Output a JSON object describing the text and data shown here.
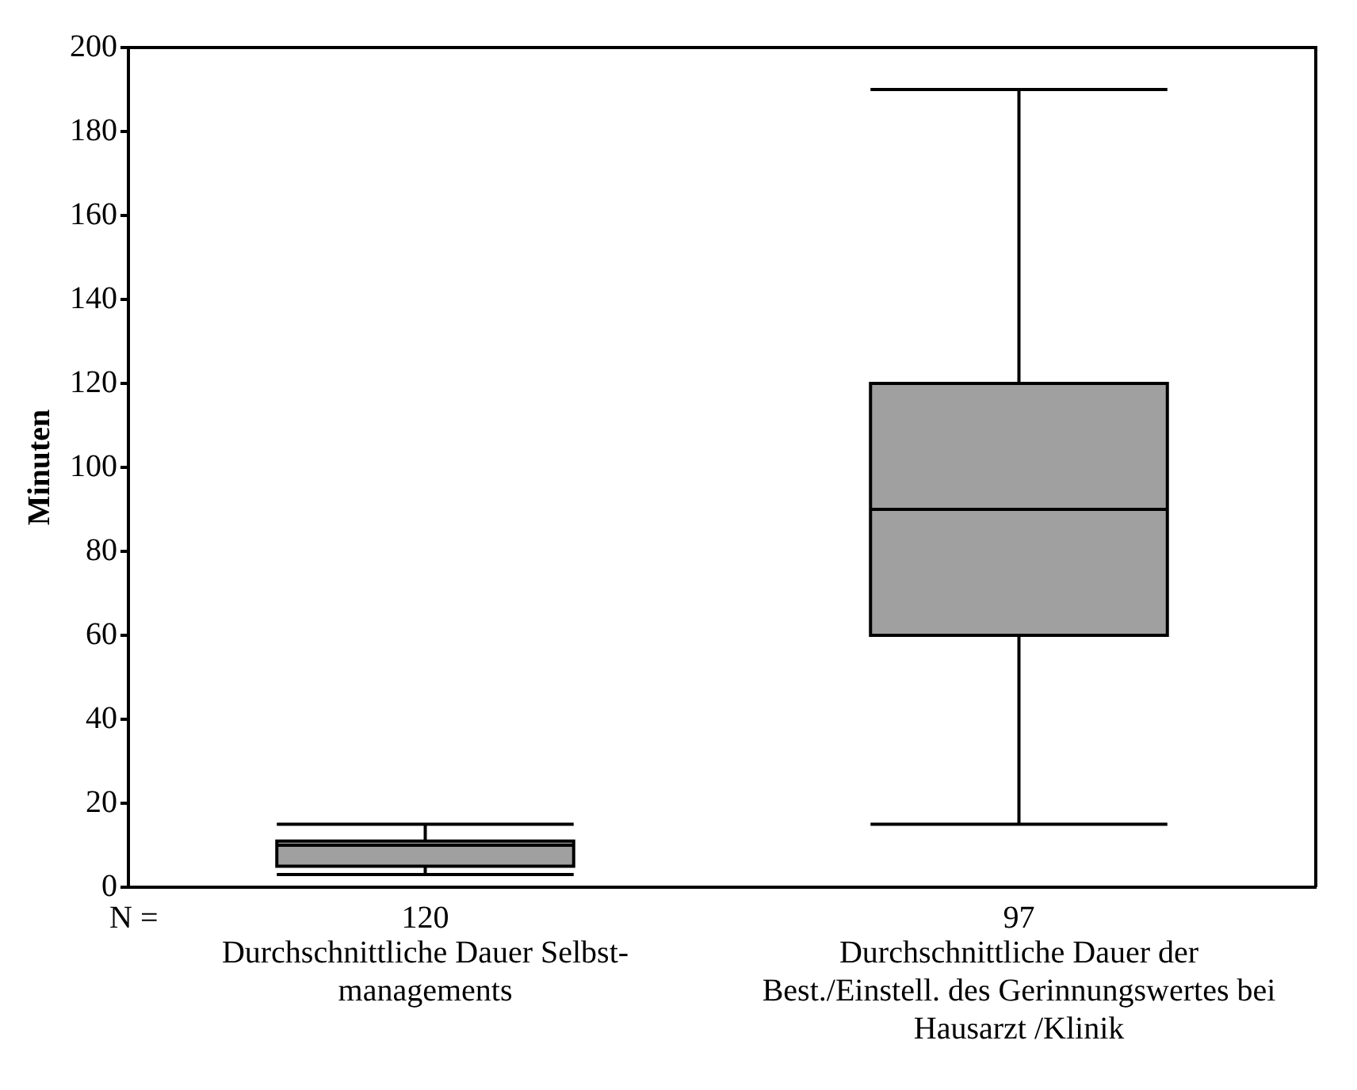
{
  "chart_data": {
    "type": "box",
    "ylabel": "Minuten",
    "categories": [
      "Durchschnittliche Dauer Selbst- managements",
      "Durchschnittliche Dauer der Best./Einstell. des Gerinnungswertes bei Hausarzt /Klinik"
    ],
    "boxes": [
      {
        "low": 3,
        "q1": 5,
        "median": 10,
        "q3": 11,
        "high": 15
      },
      {
        "low": 15,
        "q1": 60,
        "median": 90,
        "q3": 120,
        "high": 190
      }
    ],
    "color": "#a0a0a0",
    "ylim": [
      0,
      200
    ],
    "yticks": [
      0,
      20,
      40,
      60,
      80,
      100,
      120,
      140,
      160,
      180,
      200
    ],
    "grid": false,
    "legend": false,
    "annotations": [
      "N =",
      "120",
      "97"
    ]
  }
}
